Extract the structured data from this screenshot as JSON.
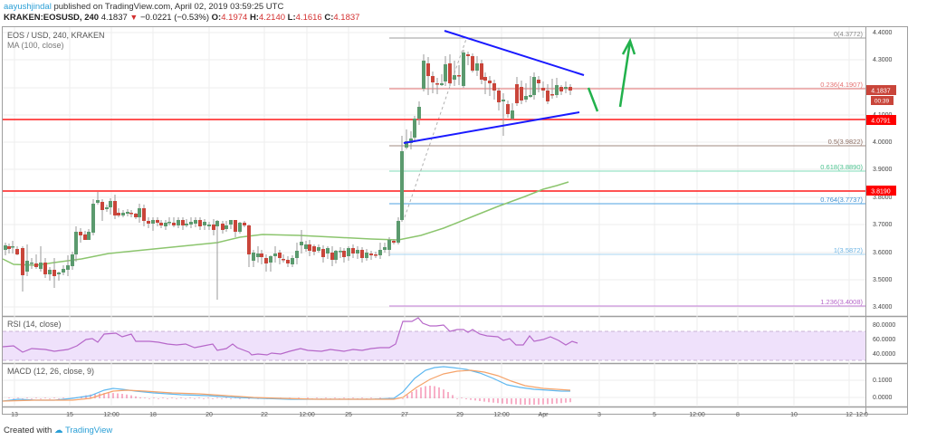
{
  "header": {
    "author": "aayushjindal",
    "published_text": "published on TradingView.com, April 02, 2019 03:59:25 UTC",
    "symbol_line": "KRAKEN:EOSUSD, 240",
    "last": "4.1837",
    "change": "−0.0221 (−0.53%)",
    "o_label": "O:",
    "o_value": "4.1974",
    "h_label": "H:",
    "h_value": "4.2140",
    "l_label": "L:",
    "l_value": "4.1616",
    "c_label": "C:",
    "c_value": "4.1837"
  },
  "panes": {
    "price": {
      "title": "EOS / USD, 240, KRAKEN",
      "indicator": "MA (100, close)"
    },
    "rsi": {
      "title": "RSI (14, close)"
    },
    "macd": {
      "title": "MACD (12, 26, close, 9)"
    }
  },
  "footer": {
    "created_with": "Created with",
    "brand": "TradingView"
  },
  "colors": {
    "up": "#5b9a6e",
    "down": "#c9453a",
    "ma": "#8cc56e",
    "resistance": "#ff1a1a",
    "trendline": "#1a1aff",
    "arrow": "#22b14c",
    "rsi_line": "#b667c9",
    "rsi_band": "#efe1fb",
    "macd_line": "#5fb8f0",
    "signal_line": "#f5a36a",
    "hist": "#f06292"
  },
  "chart_data": {
    "type": "candlestick",
    "title": "EOS / USD, 240, KRAKEN",
    "y_axis": {
      "ticks": [
        "4.4000",
        "4.3000",
        "4.2000",
        "4.1000",
        "4.0000",
        "3.9000",
        "3.8000",
        "3.7000",
        "3.6000",
        "3.5000",
        "3.4000"
      ],
      "range": [
        3.38,
        4.42
      ]
    },
    "x_axis": {
      "ticks": [
        "13",
        "15",
        "12:00",
        "18",
        "20",
        "22",
        "12:00",
        "25",
        "27",
        "29",
        "12:00",
        "Apr",
        "3",
        "5",
        "12:00",
        "8",
        "10",
        "12",
        "12:0"
      ]
    },
    "price_labels": {
      "last": "4.1837",
      "countdown": "00:39",
      "resistance_1": "4.0791",
      "resistance_2": "3.8190"
    },
    "fib_levels": [
      {
        "label": "0(4.3772)",
        "value": 4.3772,
        "color": "#9e9e9e"
      },
      {
        "label": "0.236(4.1907)",
        "value": 4.1907,
        "color": "#e57373"
      },
      {
        "label": "0.5(3.9822)",
        "value": 3.9822,
        "color": "#a1887f"
      },
      {
        "label": "0.618(3.8890)",
        "value": 3.889,
        "color": "#66d3a6"
      },
      {
        "label": "0.764(3.7737)",
        "value": 3.7737,
        "color": "#4fa3e0"
      },
      {
        "label": "1(3.5872)",
        "value": 3.5872,
        "color": "#7fc1ea"
      },
      {
        "label": "1.236(3.4008)",
        "value": 3.4008,
        "color": "#c27bd6"
      }
    ],
    "horizontal_lines": [
      4.0791,
      3.819
    ],
    "ma100": "rising from ~3.55 to ~3.86",
    "rsi": {
      "ticks": [
        "80.0000",
        "60.0000",
        "40.0000"
      ],
      "band": [
        30,
        70
      ]
    },
    "macd": {
      "ticks": [
        "0.1000",
        "0.0000"
      ]
    }
  }
}
